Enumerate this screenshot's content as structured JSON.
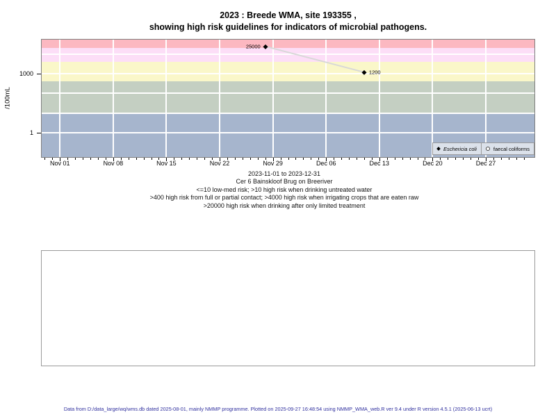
{
  "title": {
    "line1": "2023 : Breede WMA, site 193355 ,",
    "line2": "showing high risk guidelines for indicators of microbial pathogens."
  },
  "y_axis": {
    "label": "/100mL",
    "ticks": [
      {
        "value": 1000,
        "label": "1000"
      },
      {
        "value": 1,
        "label": "1"
      }
    ]
  },
  "x_axis": {
    "major_ticks": [
      {
        "day": 0,
        "label": "Nov 01"
      },
      {
        "day": 7,
        "label": "Nov 08"
      },
      {
        "day": 14,
        "label": "Nov 15"
      },
      {
        "day": 21,
        "label": "Nov 22"
      },
      {
        "day": 28,
        "label": "Nov 29"
      },
      {
        "day": 35,
        "label": "Dec 06"
      },
      {
        "day": 42,
        "label": "Dec 13"
      },
      {
        "day": 49,
        "label": "Dec 20"
      },
      {
        "day": 56,
        "label": "Dec 27"
      }
    ],
    "minor_tick_day_from": -2,
    "minor_tick_day_to": 61
  },
  "chart_data": {
    "type": "scatter",
    "title": "2023 : Breede WMA, site 193355 , showing high risk guidelines for indicators of microbial pathogens.",
    "xlabel": "",
    "ylabel": "/100mL",
    "y_scale": "log10",
    "x_range_days": [
      -2.4,
      62.4
    ],
    "x_range_dates": [
      "2023-10-30",
      "2024-01-02"
    ],
    "y_log_range": [
      -1.24,
      4.74
    ],
    "grid": true,
    "legend_position": "bottom-right-inside",
    "series": [
      {
        "name": "Eschericia coli",
        "symbol": "filled-diamond",
        "points": [
          {
            "date": "2023-11-28",
            "day": 27,
            "value": 25000,
            "label": "25000",
            "label_side": "left"
          },
          {
            "date": "2023-12-11",
            "day": 40,
            "value": 1200,
            "label": "1200",
            "label_side": "right"
          }
        ]
      },
      {
        "name": "faecal coliforms",
        "symbol": "open-circle",
        "points": []
      }
    ],
    "risk_bands": [
      {
        "label": ">20000 high risk when drinking after only limited treatment",
        "from": 20000,
        "to": null,
        "color": "#fcb8c1"
      },
      {
        "label": "4000-20000",
        "from": 4000,
        "to": 20000,
        "color": "#fcdef7"
      },
      {
        "label": "400-4000",
        "from": 400,
        "to": 4000,
        "color": "#faf7c9"
      },
      {
        "label": "10-400",
        "from": 10,
        "to": 400,
        "color": "#c4cfc2"
      },
      {
        "label": "<=10 low-med risk",
        "from": null,
        "to": 10,
        "color": "#a6b5cd"
      }
    ],
    "h_gridline_values": [
      1,
      10,
      100,
      1000,
      10000
    ],
    "line_color": "#d8d8d8",
    "point_color": "#000000"
  },
  "legend": {
    "items": [
      {
        "label": "Eschericia coli",
        "symbol": "filled-diamond",
        "italic": true
      },
      {
        "label": "faecal coliforms",
        "symbol": "open-circle",
        "italic": false
      }
    ]
  },
  "caption": {
    "lines": [
      "2023-11-01 to 2023-12-31",
      "Cer 6 Bainskloof Brug on Breeriver",
      "<=10 low-med risk; >10 high risk when drinking untreated water",
      ">400 high risk from full or partial contact; >4000 high risk when irrigating crops that are eaten raw",
      ">20000 high risk when drinking after only limited treatment"
    ]
  },
  "footer": {
    "text": "Data from D:/data_large/wq/wms.db dated 2025-08-01, mainly NMMP programme. Plotted on 2025-09-27 16:48:54 using NMMP_WMA_web.R ver 9.4 under R version 4.5.1 (2025-06-13 ucrt)",
    "color": "#2f2f9e"
  }
}
